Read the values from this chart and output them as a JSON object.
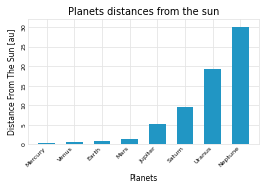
{
  "title": "Planets distances from the sun",
  "xlabel": "Planets",
  "ylabel": "Distance From The Sun [au]",
  "planets": [
    "Mercury",
    "Venus",
    "Earth",
    "Mars",
    "Jupiter",
    "Saturn",
    "Uranus",
    "Neptune"
  ],
  "distances_au": [
    0.387,
    0.723,
    1.0,
    1.524,
    5.203,
    9.537,
    19.191,
    30.069
  ],
  "bar_color": "#2196c4",
  "background_color": "#ffffff",
  "grid_color": "#e5e5e5",
  "title_fontsize": 7,
  "axis_label_fontsize": 5.5,
  "tick_fontsize": 4.5,
  "ytick_values": [
    0,
    5,
    10,
    15,
    20,
    25,
    30
  ],
  "ylim": [
    0,
    32
  ]
}
